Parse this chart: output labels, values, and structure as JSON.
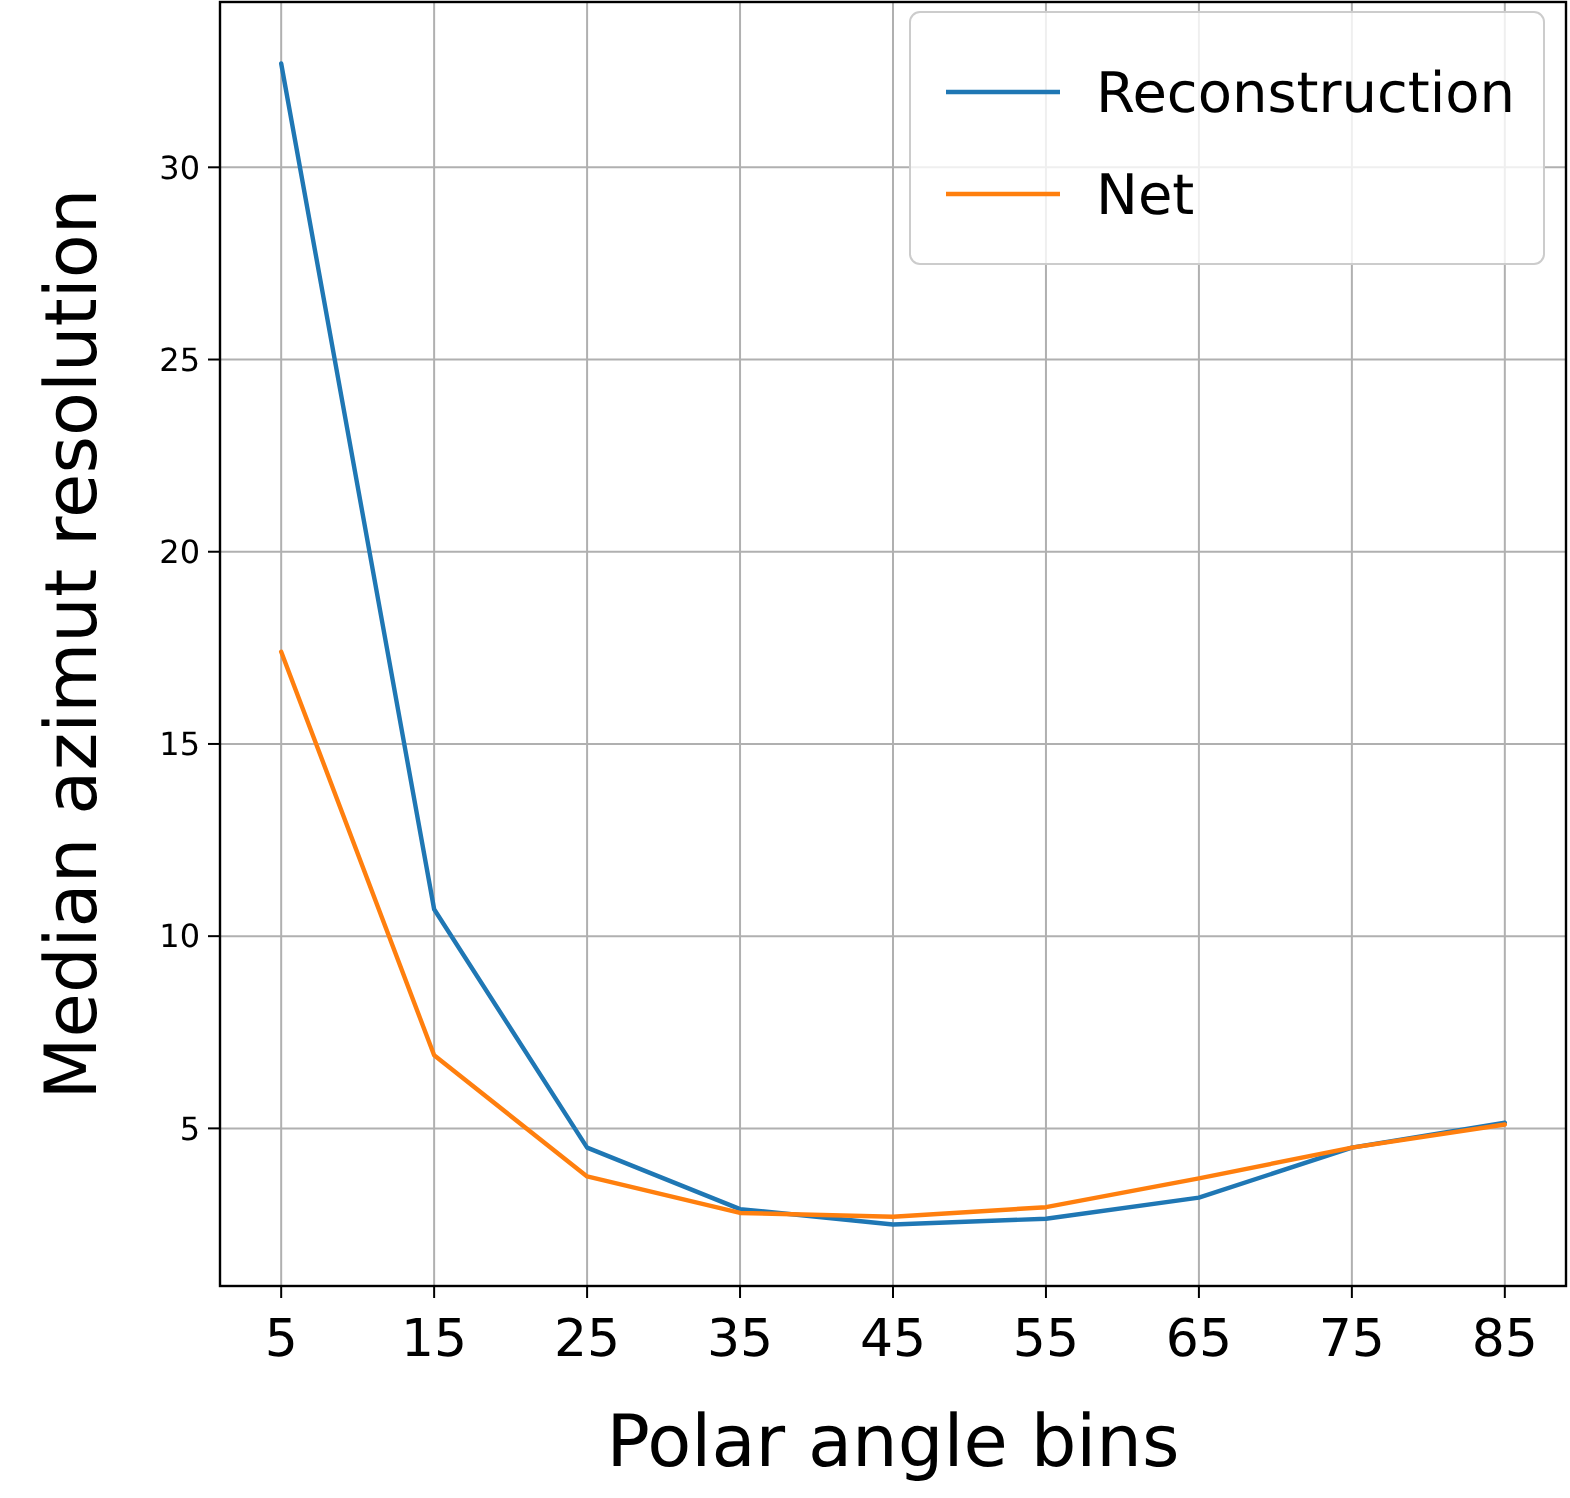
{
  "chart_data": {
    "type": "line",
    "xlabel": "Polar angle bins",
    "ylabel": "Median azimut resolution",
    "x": [
      5,
      15,
      25,
      35,
      45,
      55,
      65,
      75,
      85
    ],
    "series": [
      {
        "name": "Reconstruction",
        "color": "#1f77b4",
        "values": [
          32.7,
          10.7,
          4.5,
          2.9,
          2.5,
          2.65,
          3.2,
          4.5,
          5.15
        ]
      },
      {
        "name": "Net",
        "color": "#ff7f0e",
        "values": [
          17.4,
          6.9,
          3.75,
          2.8,
          2.7,
          2.95,
          3.7,
          4.5,
          5.1
        ]
      }
    ],
    "xlim": [
      1,
      89
    ],
    "xticks": [
      5,
      15,
      25,
      35,
      45,
      55,
      65,
      75,
      85
    ],
    "ylim": [
      0.9,
      34.3
    ],
    "yticks": [
      5,
      10,
      15,
      20,
      25,
      30
    ],
    "grid": true,
    "legend": "top right",
    "marker": "none",
    "line_style": "solid"
  }
}
